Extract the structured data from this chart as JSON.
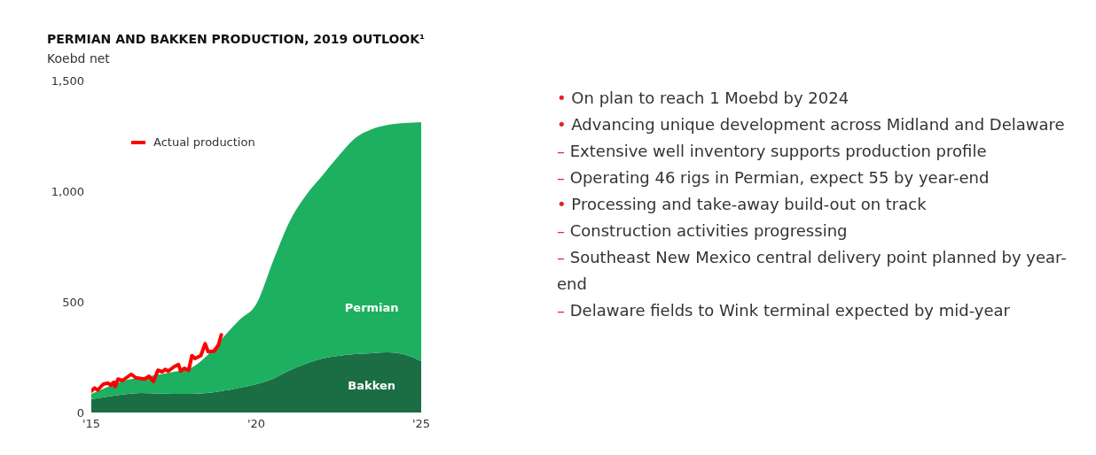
{
  "chart_data": {
    "type": "area",
    "title": "PERMIAN AND BAKKEN PRODUCTION, 2019 OUTLOOK¹",
    "ylabel": "Koebd net",
    "stacked": true,
    "x": [
      2015,
      2015.5,
      2016,
      2016.5,
      2017,
      2017.5,
      2018,
      2018.5,
      2019,
      2019.5,
      2020,
      2020.5,
      2021,
      2021.5,
      2022,
      2022.5,
      2023,
      2023.5,
      2024,
      2024.5,
      2025
    ],
    "series": [
      {
        "name": "Bakken",
        "color": "#1b6e44",
        "values": [
          60,
          72,
          82,
          88,
          86,
          84,
          84,
          88,
          98,
          112,
          128,
          152,
          190,
          220,
          244,
          256,
          264,
          268,
          272,
          262,
          232
        ]
      },
      {
        "name": "Permian",
        "color": "#1db060",
        "values": [
          24,
          44,
          62,
          70,
          84,
          100,
          116,
          168,
          242,
          308,
          362,
          528,
          670,
          760,
          826,
          904,
          976,
          1012,
          1028,
          1046,
          1080
        ]
      },
      {
        "name": "Actual production",
        "type": "line",
        "color": "#ff0000",
        "x": [
          2015.0,
          2015.1,
          2015.19,
          2015.36,
          2015.5,
          2015.59,
          2015.68,
          2015.72,
          2015.81,
          2015.94,
          2016.21,
          2016.35,
          2016.61,
          2016.75,
          2016.88,
          2017.02,
          2017.15,
          2017.24,
          2017.33,
          2017.51,
          2017.64,
          2017.71,
          2017.82,
          2017.95,
          2018.05,
          2018.14,
          2018.32,
          2018.45,
          2018.54,
          2018.72,
          2018.85,
          2018.94
        ],
        "values": [
          97,
          111,
          101,
          128,
          133,
          124,
          137,
          117,
          151,
          144,
          173,
          157,
          151,
          164,
          140,
          191,
          184,
          195,
          187,
          207,
          217,
          187,
          200,
          191,
          257,
          244,
          257,
          311,
          275,
          277,
          304,
          351
        ]
      }
    ],
    "xlim": [
      2015,
      2025
    ],
    "xticks": [
      {
        "value": 2015,
        "label": "'15"
      },
      {
        "value": 2020,
        "label": "'20"
      },
      {
        "value": 2025,
        "label": "'25"
      }
    ],
    "ylim": [
      0,
      1500
    ],
    "yticks": [
      {
        "value": 0,
        "label": "0"
      },
      {
        "value": 500,
        "label": "500"
      },
      {
        "value": 1000,
        "label": "1,000"
      },
      {
        "value": 1500,
        "label": "1,500"
      }
    ],
    "legend": "top left",
    "grid": false,
    "marker": "none",
    "line_style": "solid",
    "annotations": [
      "• On plan to reach 1 Moebd by 2024",
      "• Advancing unique development across Midland and Delaware",
      "– Extensive well inventory supports production profile",
      "– Operating 46 rigs in Permian, expect 55 by year-end",
      "• Processing and take-away build-out on track",
      "– Construction activities progressing",
      "– Southeast New Mexico central delivery point planned by year-end",
      "– Delaware fields to Wink terminal expected by mid-year"
    ]
  }
}
